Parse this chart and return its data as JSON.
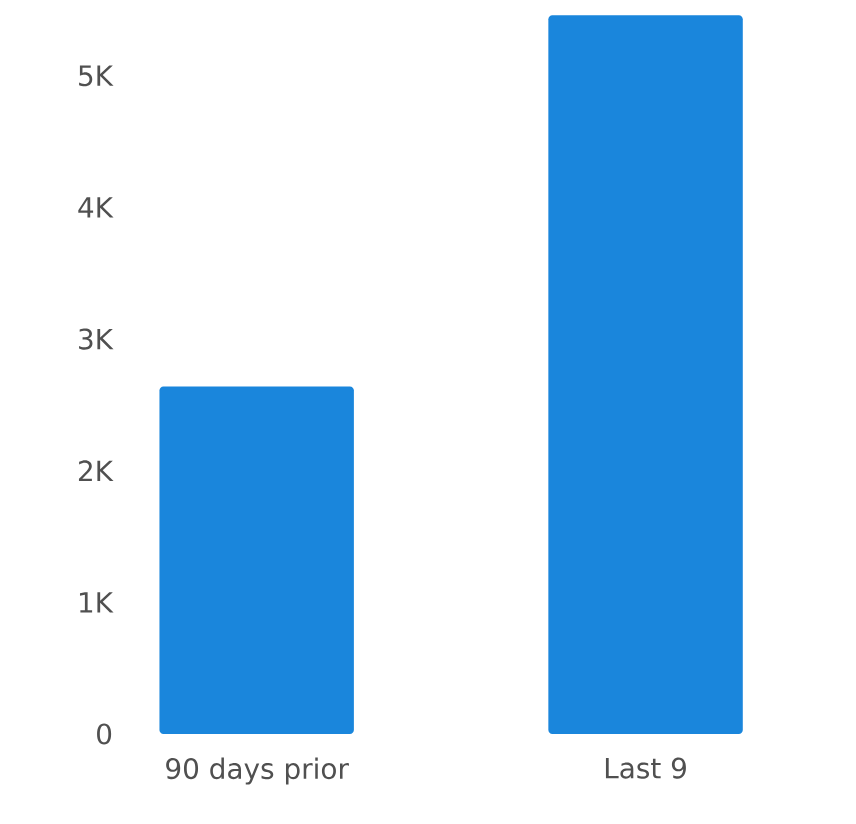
{
  "chart_data": {
    "type": "bar",
    "categories": [
      "90 days prior",
      "Last 9"
    ],
    "values": [
      2640,
      5460
    ],
    "color": "#1a86dc",
    "ylim": [
      0,
      5500
    ],
    "yticks": [
      0,
      {
        "value": 1000,
        "label": "1K"
      },
      {
        "value": 2000,
        "label": "2K"
      },
      {
        "value": 3000,
        "label": "3K"
      },
      {
        "value": 4000,
        "label": "4K"
      },
      {
        "value": 5000,
        "label": "5K"
      }
    ]
  }
}
